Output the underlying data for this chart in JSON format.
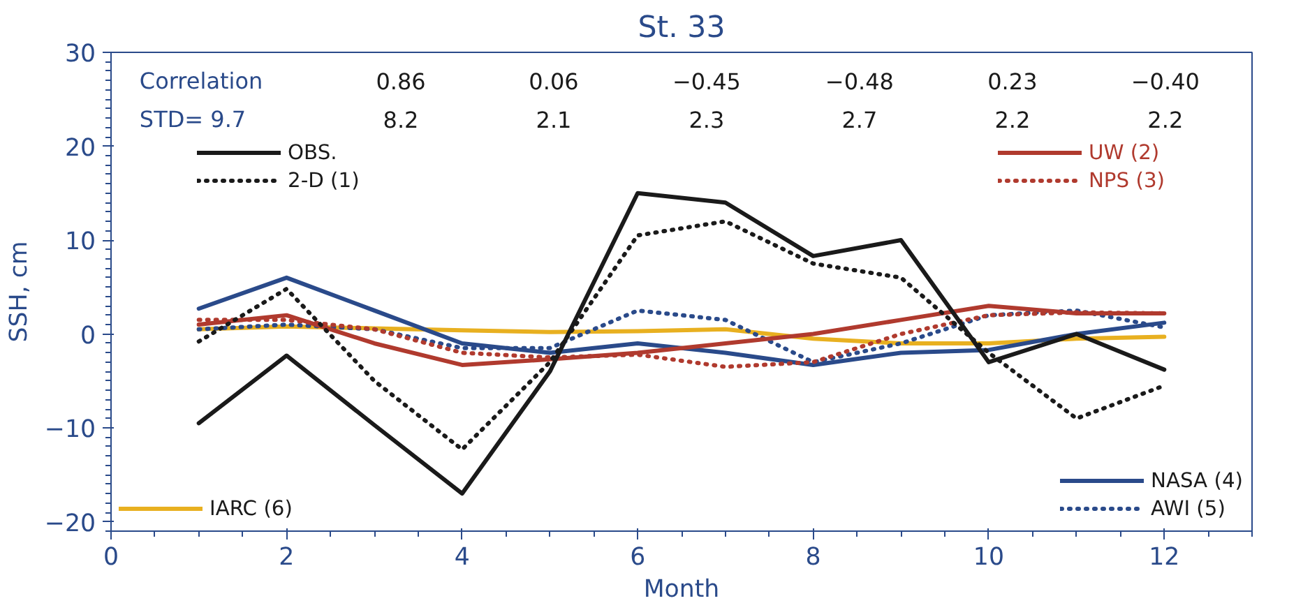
{
  "chart_data": {
    "type": "line",
    "title": "St. 33",
    "xlabel": "Month",
    "ylabel": "SSH, cm",
    "x": [
      1,
      2,
      3,
      4,
      5,
      6,
      7,
      8,
      9,
      10,
      11,
      12
    ],
    "xlim": [
      0,
      13
    ],
    "xticks": [
      0,
      2,
      4,
      6,
      8,
      10,
      12
    ],
    "ylim": [
      -21,
      30
    ],
    "yticks": [
      -20,
      -10,
      0,
      10,
      20,
      30
    ],
    "grid": false,
    "legend": "right",
    "annotations": [
      "Correlation",
      "0.86",
      "0.06",
      "−0.45",
      "−0.48",
      "0.23",
      "−0.40",
      "STD= 9.7",
      "8.2",
      "2.1",
      "2.3",
      "2.7",
      "2.2",
      "2.2"
    ],
    "series": [
      {
        "name": "OBS.",
        "color": "#1a1a1a",
        "line_style": "solid",
        "values": [
          -9.5,
          -2.3,
          -9.7,
          -17,
          -4,
          15,
          14,
          8.3,
          10,
          -3,
          0,
          -3.8
        ]
      },
      {
        "name": "2-D (1)",
        "color": "#1a1a1a",
        "line_style": "dotted",
        "values": [
          -0.8,
          4.8,
          -5,
          -12.3,
          -3,
          10.5,
          12,
          7.5,
          6,
          -2,
          -9,
          -5.5
        ]
      },
      {
        "name": "UW (2)",
        "color": "#b03a2e",
        "line_style": "solid",
        "values": [
          1,
          2,
          -1,
          -3.3,
          -2.7,
          -2,
          -1,
          0,
          1.5,
          3,
          2.2,
          2.2
        ]
      },
      {
        "name": "NPS (3)",
        "color": "#b03a2e",
        "line_style": "dotted",
        "values": [
          1.5,
          1.5,
          0.5,
          -2,
          -2.5,
          -2.2,
          -3.5,
          -3,
          0,
          2,
          2.3,
          2.2
        ]
      },
      {
        "name": "NASA (4)",
        "color": "#2a4a8a",
        "line_style": "solid",
        "values": [
          2.7,
          6,
          2.5,
          -1,
          -2,
          -1,
          -2,
          -3.3,
          -2,
          -1.7,
          0,
          1.2
        ]
      },
      {
        "name": "AWI (5)",
        "color": "#2a4a8a",
        "line_style": "dotted",
        "values": [
          0.5,
          1,
          0.5,
          -1.5,
          -1.5,
          2.5,
          1.5,
          -3,
          -1,
          2,
          2.5,
          0.7
        ]
      },
      {
        "name": "IARC (6)",
        "color": "#e8b020",
        "line_style": "solid",
        "values": [
          0.5,
          0.8,
          0.6,
          0.4,
          0.2,
          0.3,
          0.5,
          -0.5,
          -1,
          -1,
          -0.5,
          -0.3
        ]
      }
    ]
  }
}
